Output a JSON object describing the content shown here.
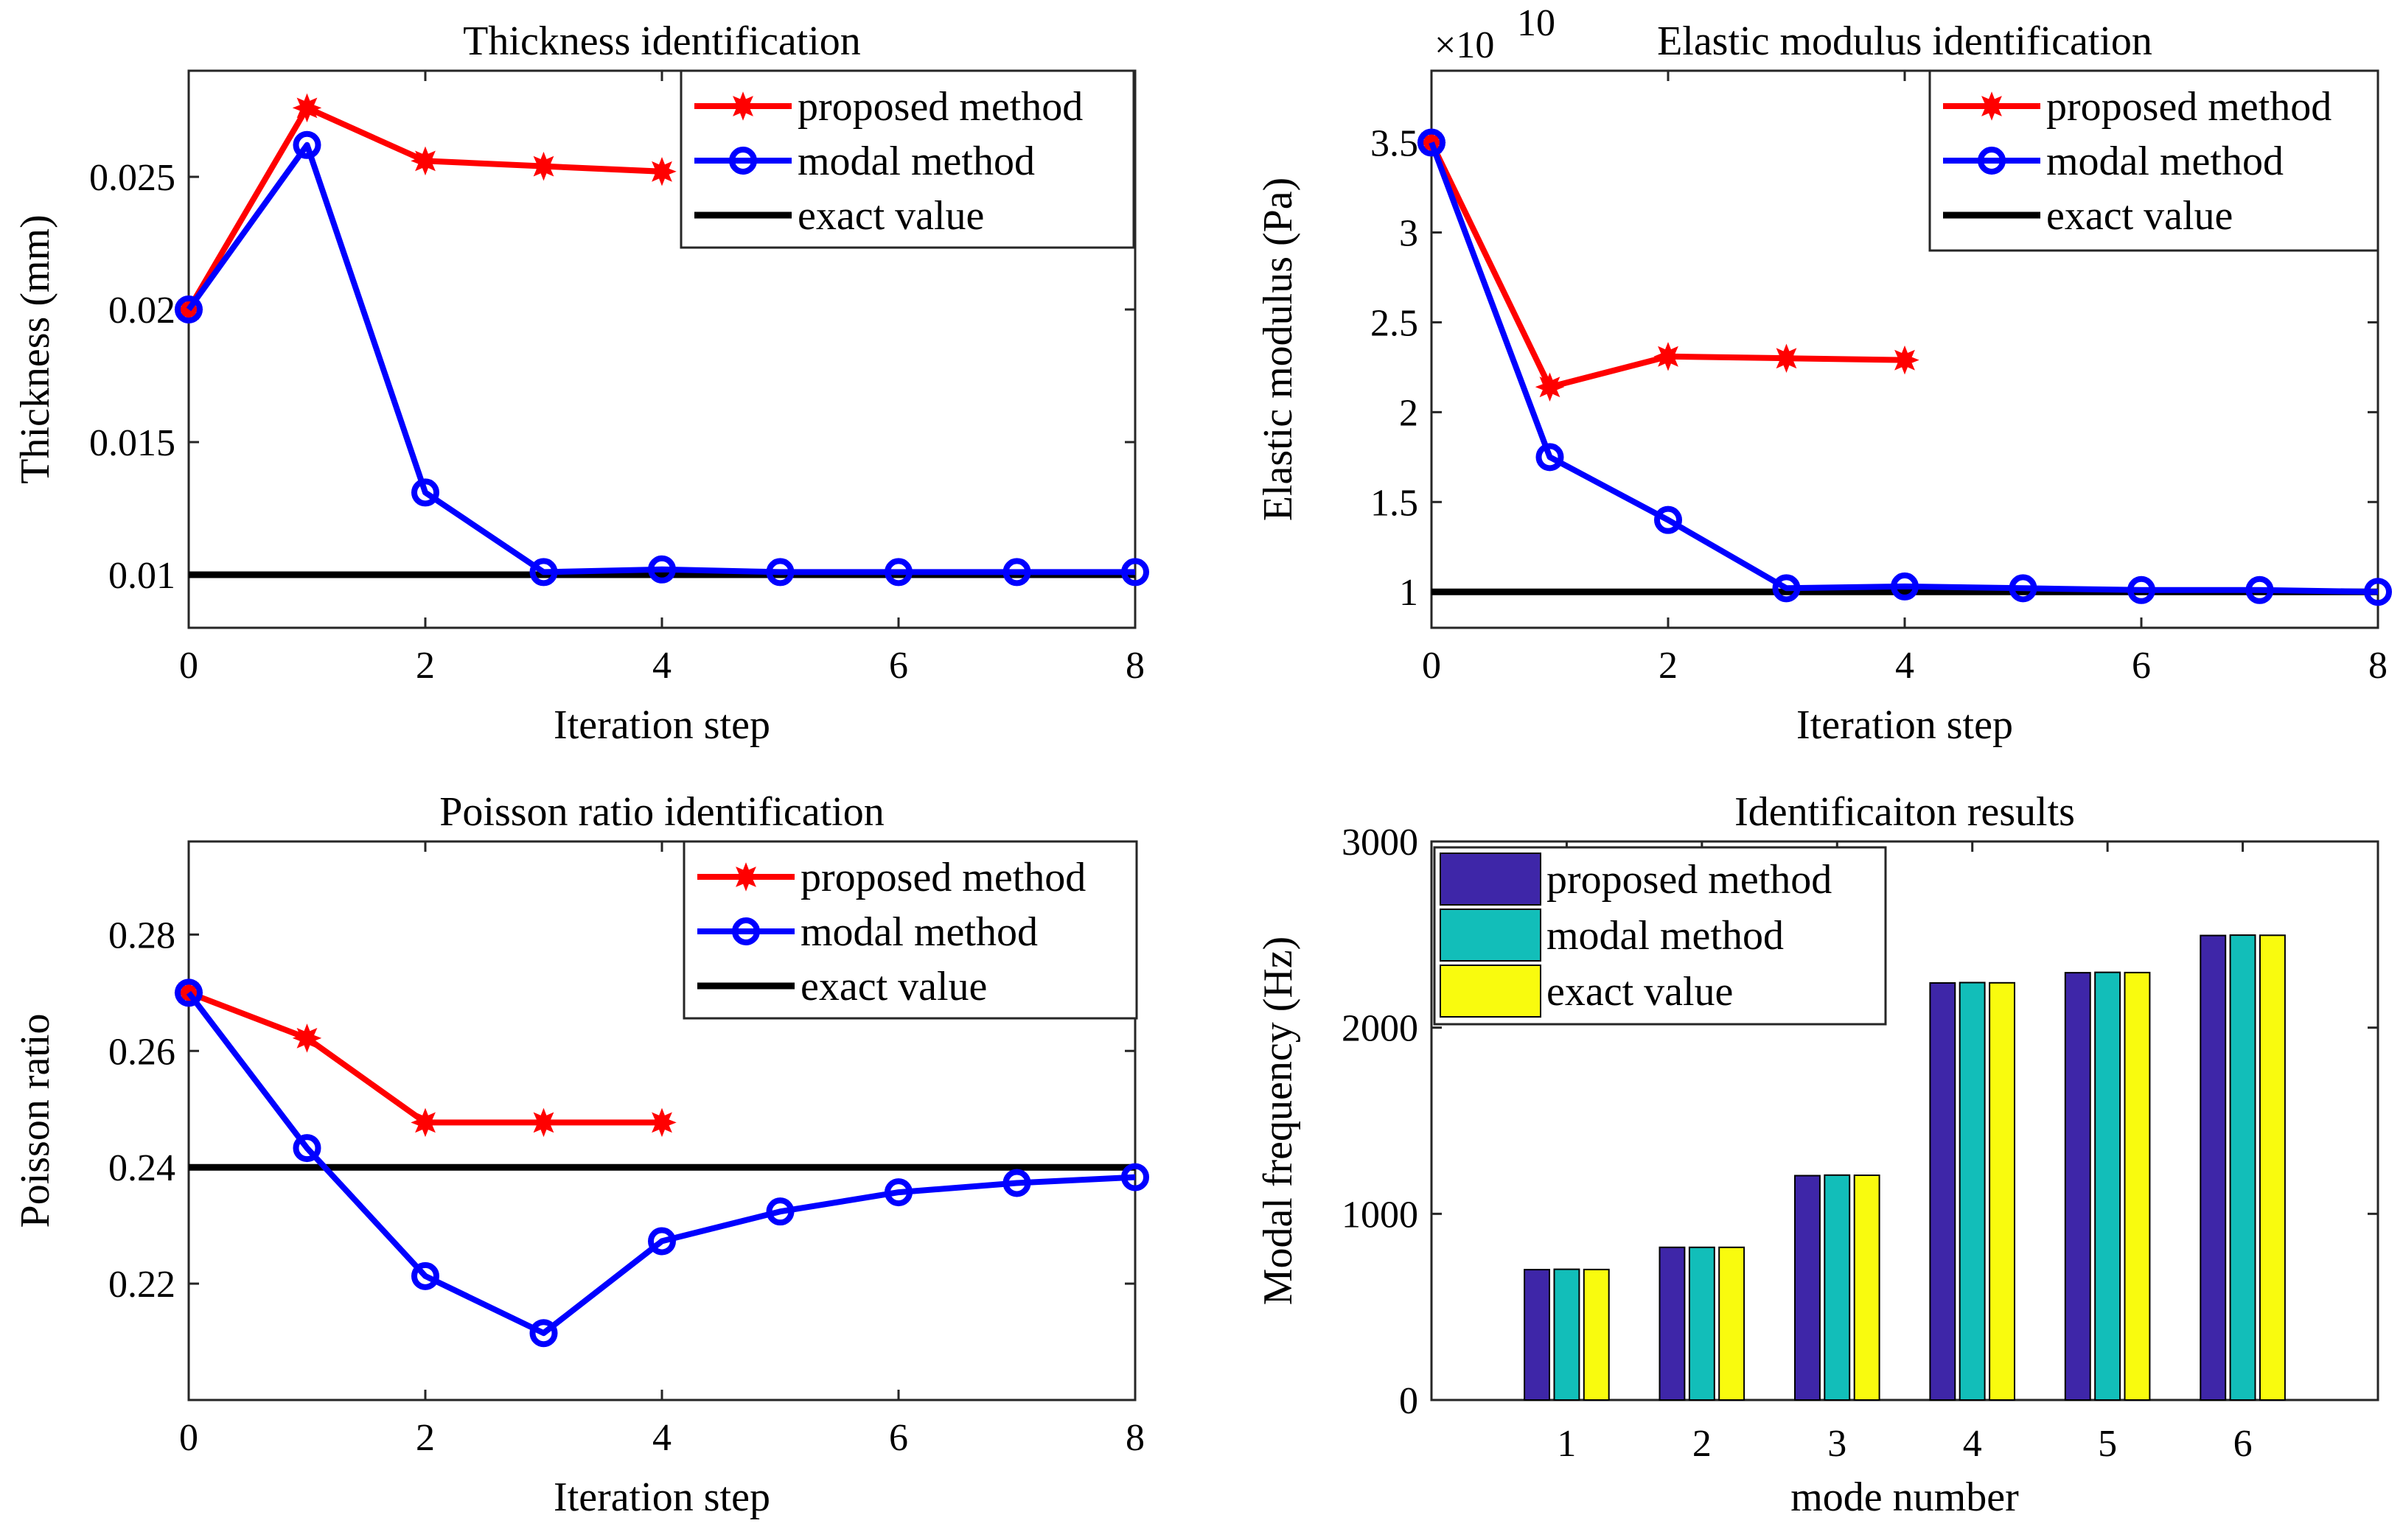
{
  "chart_data": [
    {
      "id": "thickness",
      "type": "line",
      "title": "Thickness identification",
      "xlabel": "Iteration step",
      "ylabel": "Thickness (mm)",
      "xlim": [
        0,
        8
      ],
      "ylim": [
        0.008,
        0.029
      ],
      "xticks": [
        0,
        2,
        4,
        6,
        8
      ],
      "yticks": [
        0.01,
        0.015,
        0.02,
        0.025
      ],
      "xtick_labels": [
        "0",
        "2",
        "4",
        "6",
        "8"
      ],
      "ytick_labels": [
        "0.01",
        "0.015",
        "0.02",
        "0.025"
      ],
      "legend_position": "top-right",
      "series": [
        {
          "name": "proposed method",
          "color": "#ff0000",
          "marker": "star",
          "x": [
            0,
            1,
            2,
            3,
            4
          ],
          "values": [
            0.02,
            0.0276,
            0.0256,
            0.0254,
            0.0252
          ]
        },
        {
          "name": "modal method",
          "color": "#0000ff",
          "marker": "circle",
          "x": [
            0,
            1,
            2,
            3,
            4,
            5,
            6,
            7,
            8
          ],
          "values": [
            0.02,
            0.0262,
            0.0131,
            0.0101,
            0.0102,
            0.0101,
            0.0101,
            0.0101,
            0.0101
          ]
        },
        {
          "name": "exact value",
          "color": "#000000",
          "marker": "none",
          "x": [
            0,
            8
          ],
          "values": [
            0.01,
            0.01
          ]
        }
      ]
    },
    {
      "id": "elastic",
      "type": "line",
      "title": "Elastic modulus identification",
      "xlabel": "Iteration step",
      "ylabel": "Elastic modulus (Pa)",
      "exponent_base": "×10",
      "exponent_power": "10",
      "xlim": [
        0,
        8
      ],
      "ylim": [
        0.8,
        3.9
      ],
      "xticks": [
        0,
        2,
        4,
        6,
        8
      ],
      "yticks": [
        1,
        1.5,
        2,
        2.5,
        3,
        3.5
      ],
      "xtick_labels": [
        "0",
        "2",
        "4",
        "6",
        "8"
      ],
      "ytick_labels": [
        "1",
        "1.5",
        "2",
        "2.5",
        "3",
        "3.5"
      ],
      "legend_position": "top-right",
      "series": [
        {
          "name": "proposed method",
          "color": "#ff0000",
          "marker": "star",
          "x": [
            0,
            1,
            2,
            3,
            4
          ],
          "values": [
            3.5,
            2.14,
            2.31,
            2.3,
            2.29
          ]
        },
        {
          "name": "modal method",
          "color": "#0000ff",
          "marker": "circle",
          "x": [
            0,
            1,
            2,
            3,
            4,
            5,
            6,
            7,
            8
          ],
          "values": [
            3.5,
            1.75,
            1.4,
            1.02,
            1.03,
            1.02,
            1.01,
            1.01,
            1.0
          ]
        },
        {
          "name": "exact value",
          "color": "#000000",
          "marker": "none",
          "x": [
            0,
            8
          ],
          "values": [
            1.0,
            1.0
          ]
        }
      ]
    },
    {
      "id": "poisson",
      "type": "line",
      "title": "Poisson ratio identification",
      "xlabel": "Iteration step",
      "ylabel": "Poisson ratio",
      "xlim": [
        0,
        8
      ],
      "ylim": [
        0.2,
        0.296
      ],
      "xticks": [
        0,
        2,
        4,
        6,
        8
      ],
      "yticks": [
        0.22,
        0.24,
        0.26,
        0.28
      ],
      "xtick_labels": [
        "0",
        "2",
        "4",
        "6",
        "8"
      ],
      "ytick_labels": [
        "0.22",
        "0.24",
        "0.26",
        "0.28"
      ],
      "legend_position": "top-right",
      "series": [
        {
          "name": "proposed method",
          "color": "#ff0000",
          "marker": "star",
          "x": [
            0,
            1,
            2,
            3,
            4
          ],
          "values": [
            0.27,
            0.2622,
            0.2477,
            0.2477,
            0.2477
          ]
        },
        {
          "name": "modal method",
          "color": "#0000ff",
          "marker": "circle",
          "x": [
            0,
            1,
            2,
            3,
            4,
            5,
            6,
            7,
            8
          ],
          "values": [
            0.27,
            0.2433,
            0.2213,
            0.2115,
            0.2273,
            0.2324,
            0.2357,
            0.2373,
            0.2383
          ]
        },
        {
          "name": "exact value",
          "color": "#000000",
          "marker": "none",
          "x": [
            0,
            8
          ],
          "values": [
            0.24,
            0.24
          ]
        }
      ]
    },
    {
      "id": "freq",
      "type": "bar",
      "title": "Identificaiton results",
      "xlabel": "mode number",
      "ylabel": "Modal frequency (Hz)",
      "categories": [
        "1",
        "2",
        "3",
        "4",
        "5",
        "6"
      ],
      "xlim": [
        0,
        7
      ],
      "ylim": [
        0,
        3000
      ],
      "yticks": [
        0,
        1000,
        2000,
        3000
      ],
      "ytick_labels": [
        "0",
        "1000",
        "2000",
        "3000"
      ],
      "legend_position": "top-left",
      "series": [
        {
          "name": "proposed method",
          "color": "#3e26a8",
          "values": [
            700,
            820,
            1205,
            2240,
            2295,
            2495
          ]
        },
        {
          "name": "modal method",
          "color": "#12beb9",
          "values": [
            702,
            820,
            1208,
            2242,
            2297,
            2497
          ]
        },
        {
          "name": "exact value",
          "color": "#f9fb0e",
          "values": [
            701,
            820,
            1207,
            2241,
            2296,
            2496
          ]
        }
      ]
    }
  ]
}
